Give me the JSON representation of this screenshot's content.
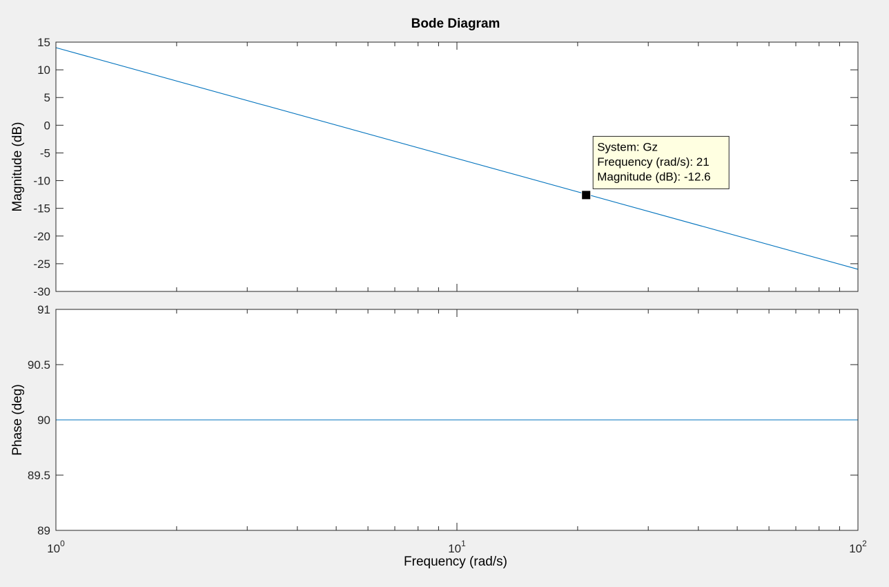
{
  "chart_data": {
    "type": "line",
    "title": "Bode Diagram",
    "xlabel": "Frequency  (rad/s)",
    "xscale": "log",
    "xlim": [
      1,
      100
    ],
    "x_ticks": [
      {
        "value": 1,
        "base": "10",
        "exp": "0"
      },
      {
        "value": 10,
        "base": "10",
        "exp": "1"
      },
      {
        "value": 100,
        "base": "10",
        "exp": "2"
      }
    ],
    "grid": false,
    "legend": "none",
    "colors": {
      "line": "#0072bd",
      "axes": "#262626",
      "tip_bg": "#ffffe1"
    },
    "panels": [
      {
        "id": "magnitude",
        "ylabel": "Magnitude (dB)",
        "ylim": [
          -30,
          15
        ],
        "yticks": [
          15,
          10,
          5,
          0,
          -5,
          -10,
          -15,
          -20,
          -25,
          -30
        ],
        "series": [
          {
            "x": [
              1,
              100
            ],
            "y": [
              14,
              -26
            ]
          }
        ],
        "datatip": {
          "x": 21,
          "y": -12.6,
          "lines": [
            "System: Gz",
            "Frequency (rad/s): 21",
            "Magnitude (dB): -12.6"
          ]
        }
      },
      {
        "id": "phase",
        "ylabel": "Phase (deg)",
        "ylim": [
          89,
          91
        ],
        "yticks": [
          91,
          90.5,
          90,
          89.5,
          89
        ],
        "series": [
          {
            "x": [
              1,
              100
            ],
            "y": [
              90,
              90
            ]
          }
        ]
      }
    ]
  }
}
